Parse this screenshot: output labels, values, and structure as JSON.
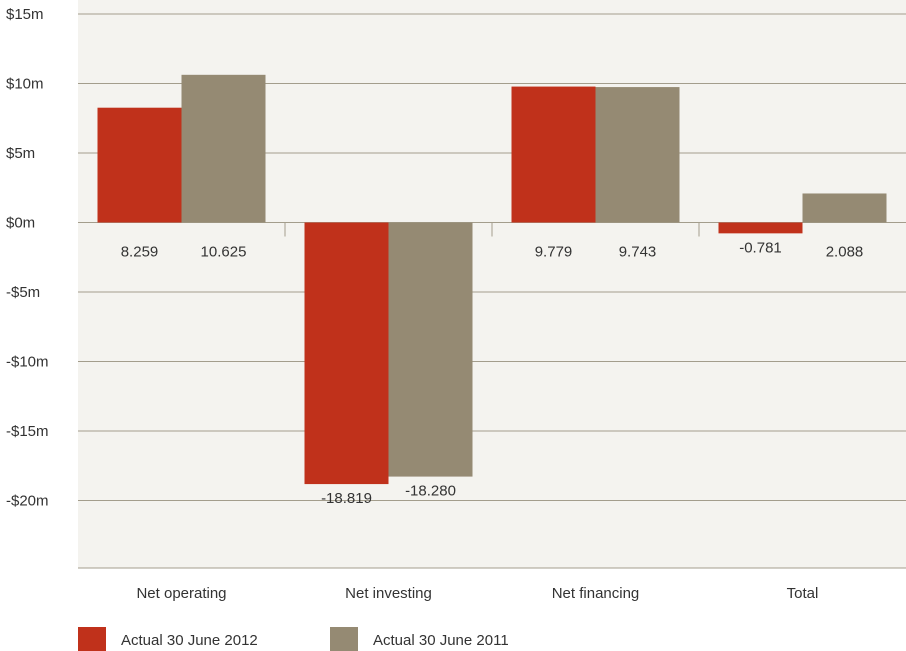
{
  "chart_data": {
    "type": "bar",
    "categories": [
      "Net operating",
      "Net investing",
      "Net financing",
      "Total"
    ],
    "series": [
      {
        "name": "Actual 30 June 2012",
        "color": "#c0311b",
        "values": [
          8.259,
          -18.819,
          9.779,
          -0.781
        ]
      },
      {
        "name": "Actual 30 June 2011",
        "color": "#958a73",
        "values": [
          10.625,
          -18.28,
          9.743,
          2.088
        ]
      }
    ],
    "data_labels": [
      [
        "8.259",
        "-18.819",
        "9.779",
        "-0.781"
      ],
      [
        "10.625",
        "-18.280",
        "9.743",
        "2.088"
      ]
    ],
    "y_ticks": [
      {
        "value": 15,
        "label": "$15m"
      },
      {
        "value": 10,
        "label": "$10m"
      },
      {
        "value": 5,
        "label": "$5m"
      },
      {
        "value": 0,
        "label": "$0m"
      },
      {
        "value": -5,
        "label": "-$5m"
      },
      {
        "value": -10,
        "label": "-$10m"
      },
      {
        "value": -15,
        "label": "-$15m"
      },
      {
        "value": -20,
        "label": "-$20m"
      }
    ],
    "ylim": [
      -25,
      15
    ],
    "grid": true,
    "legend_position": "bottom-left",
    "background_color": "#f4f3ef",
    "gridline_color": "#a39d8c"
  }
}
